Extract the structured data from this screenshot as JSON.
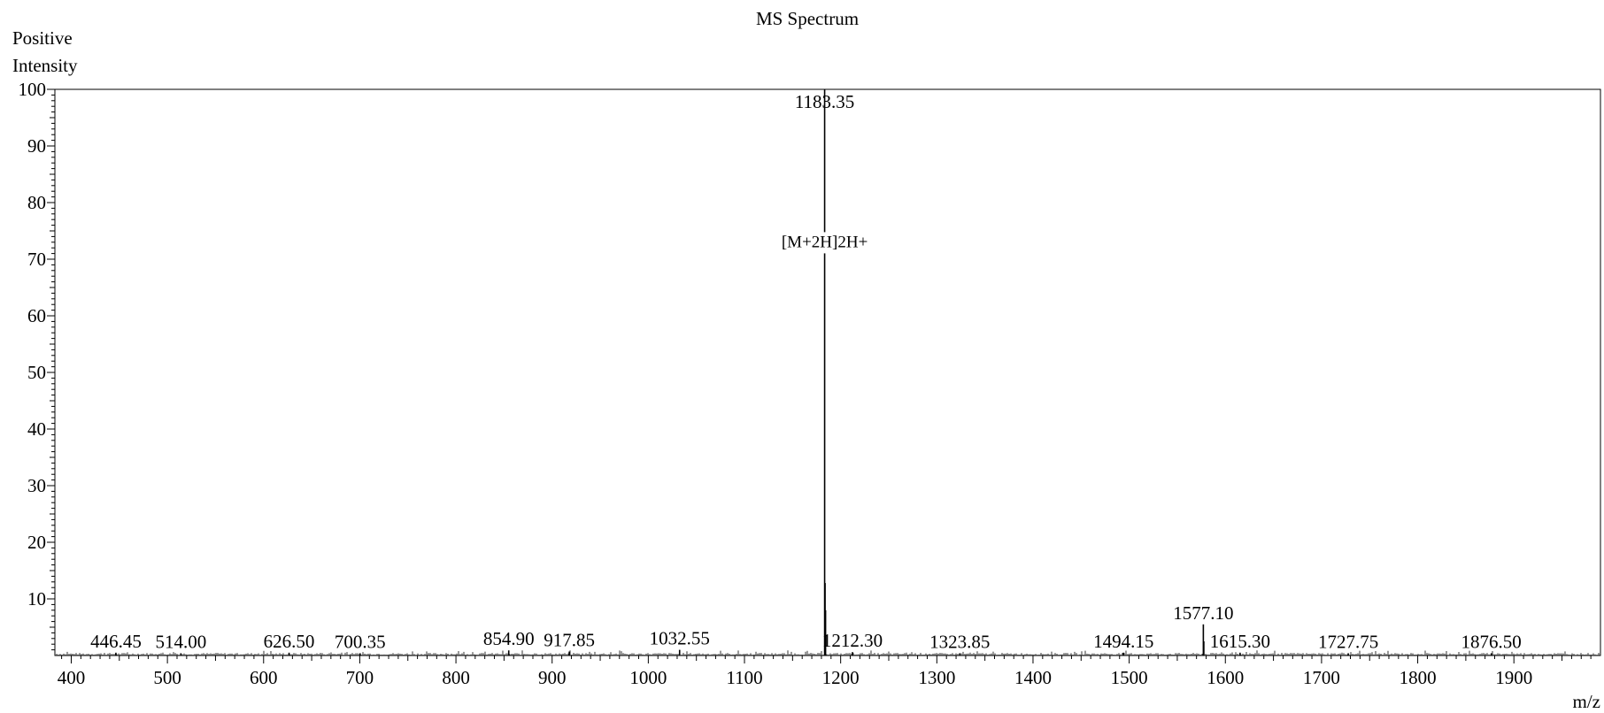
{
  "chart_data": {
    "type": "bar",
    "title": "MS Spectrum",
    "ylabel_line1": "Positive",
    "ylabel_line2": "Intensity",
    "xlabel": "m/z",
    "xlim": [
      383,
      1990
    ],
    "ylim": [
      0,
      100
    ],
    "x_ticks": [
      400,
      500,
      600,
      700,
      800,
      900,
      1000,
      1100,
      1200,
      1300,
      1400,
      1500,
      1600,
      1700,
      1800,
      1900
    ],
    "y_ticks": [
      10,
      20,
      30,
      40,
      50,
      60,
      70,
      80,
      90,
      100
    ],
    "grid": false,
    "peaks": [
      {
        "mz": 446.45,
        "intensity": 0.5,
        "label": "446.45"
      },
      {
        "mz": 514.0,
        "intensity": 0.4,
        "label": "514.00"
      },
      {
        "mz": 626.5,
        "intensity": 0.5,
        "label": "626.50"
      },
      {
        "mz": 700.35,
        "intensity": 0.4,
        "label": "700.35"
      },
      {
        "mz": 854.9,
        "intensity": 0.9,
        "label": "854.90"
      },
      {
        "mz": 917.85,
        "intensity": 0.7,
        "label": "917.85"
      },
      {
        "mz": 1032.55,
        "intensity": 1.0,
        "label": "1032.55"
      },
      {
        "mz": 1183.35,
        "intensity": 100,
        "label": "1183.35"
      },
      {
        "mz": 1183.8,
        "intensity": 12.8,
        "label": ""
      },
      {
        "mz": 1184.3,
        "intensity": 8.0,
        "label": ""
      },
      {
        "mz": 1212.3,
        "intensity": 0.6,
        "label": "1212.30"
      },
      {
        "mz": 1323.85,
        "intensity": 0.4,
        "label": "1323.85"
      },
      {
        "mz": 1494.15,
        "intensity": 0.5,
        "label": "1494.15"
      },
      {
        "mz": 1577.1,
        "intensity": 5.5,
        "label": "1577.10"
      },
      {
        "mz": 1577.6,
        "intensity": 2.5,
        "label": ""
      },
      {
        "mz": 1615.3,
        "intensity": 0.5,
        "label": "1615.30"
      },
      {
        "mz": 1727.75,
        "intensity": 0.4,
        "label": "1727.75"
      },
      {
        "mz": 1876.5,
        "intensity": 0.4,
        "label": "1876.50"
      }
    ],
    "annotations": [
      {
        "mz": 1183.35,
        "intensity": 74,
        "text": "[M+2H]2H+"
      }
    ]
  }
}
